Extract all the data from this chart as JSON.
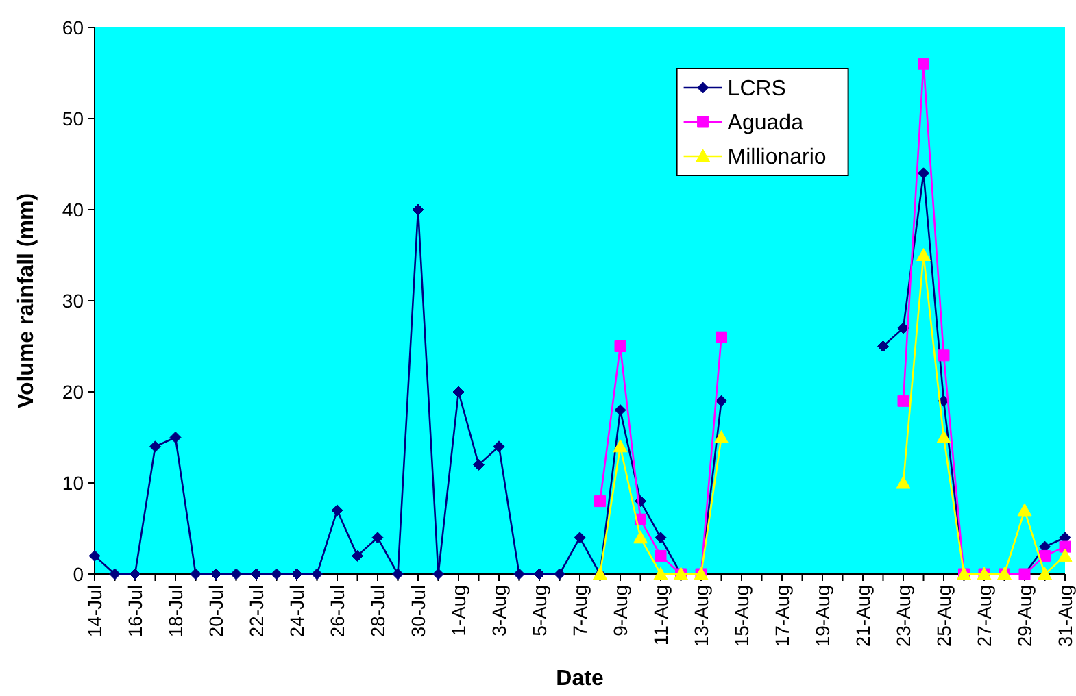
{
  "chart_data": {
    "type": "line",
    "xlabel": "Date",
    "ylabel": "Volume rainfall (mm)",
    "categories": [
      "14-Jul",
      null,
      "16-Jul",
      null,
      "18-Jul",
      null,
      "20-Jul",
      null,
      "22-Jul",
      null,
      "24-Jul",
      null,
      "26-Jul",
      null,
      "28-Jul",
      null,
      "30-Jul",
      null,
      "1-Aug",
      null,
      "3-Aug",
      null,
      "5-Aug",
      null,
      "7-Aug",
      null,
      "9-Aug",
      null,
      "11-Aug",
      null,
      "13-Aug",
      null,
      "15-Aug",
      null,
      "17-Aug",
      null,
      "19-Aug",
      null,
      "21-Aug",
      null,
      "23-Aug",
      null,
      "25-Aug",
      null,
      "27-Aug",
      null,
      "29-Aug",
      null,
      "31-Aug"
    ],
    "series": [
      {
        "name": "LCRS",
        "color": "#000080",
        "marker": "diamond",
        "values": [
          2,
          0,
          0,
          14,
          15,
          0,
          0,
          0,
          0,
          0,
          0,
          0,
          7,
          2,
          4,
          0,
          40,
          0,
          20,
          12,
          14,
          0,
          0,
          0,
          4,
          0,
          18,
          8,
          4,
          0,
          0,
          19,
          null,
          null,
          null,
          null,
          null,
          null,
          null,
          25,
          27,
          44,
          19,
          0,
          0,
          0,
          0,
          3,
          4
        ]
      },
      {
        "name": "Aguada",
        "color": "#ff00ff",
        "marker": "square",
        "values": [
          null,
          null,
          null,
          null,
          null,
          null,
          null,
          null,
          null,
          null,
          null,
          null,
          null,
          null,
          null,
          null,
          null,
          null,
          null,
          null,
          null,
          null,
          null,
          null,
          null,
          8,
          25,
          6,
          2,
          0,
          0,
          26,
          null,
          null,
          null,
          null,
          null,
          null,
          null,
          null,
          19,
          56,
          24,
          0,
          0,
          0,
          0,
          2,
          3
        ]
      },
      {
        "name": "Millionario",
        "color": "#ffff00",
        "marker": "triangle",
        "values": [
          null,
          null,
          null,
          null,
          null,
          null,
          null,
          null,
          null,
          null,
          null,
          null,
          null,
          null,
          null,
          null,
          null,
          null,
          null,
          null,
          null,
          null,
          null,
          null,
          null,
          0,
          14,
          4,
          0,
          0,
          0,
          15,
          null,
          null,
          null,
          null,
          null,
          null,
          null,
          null,
          10,
          35,
          15,
          0,
          0,
          0,
          7,
          0,
          2
        ]
      }
    ],
    "ylim": [
      0,
      60
    ],
    "yticks": [
      0,
      10,
      20,
      30,
      40,
      50,
      60
    ],
    "grid": false,
    "legend": "top right",
    "line_style": "solid"
  }
}
